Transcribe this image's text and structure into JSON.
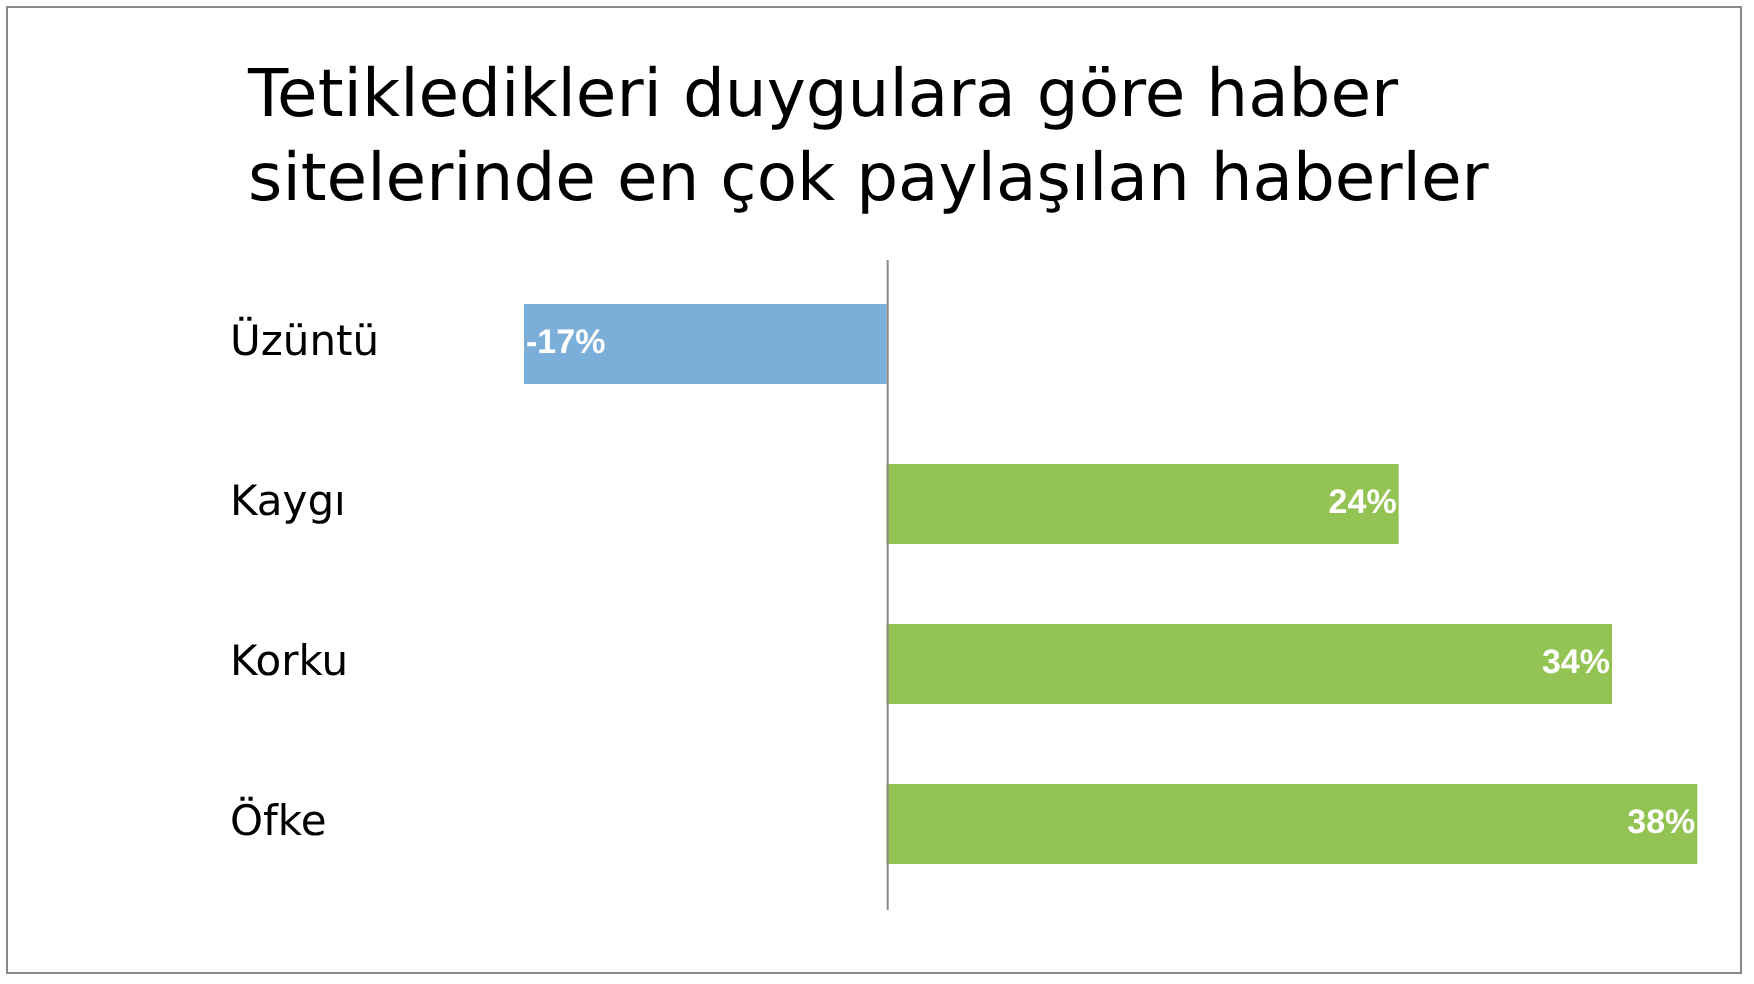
{
  "chart_data": {
    "type": "bar",
    "orientation": "horizontal",
    "title": "Tetikledikleri duygulara göre haber sitelerinde en çok paylaşılan haberler",
    "categories": [
      "Üzüntü",
      "Kaygı",
      "Korku",
      "Öfke"
    ],
    "values": [
      -17,
      24,
      34,
      38
    ],
    "colors": [
      "#7bafd9",
      "#92c353",
      "#92c353",
      "#92c353"
    ],
    "value_labels": [
      "-17%",
      "24%",
      "34%",
      "38%"
    ],
    "tick_labels": "y",
    "grid": false,
    "legend": false
  }
}
